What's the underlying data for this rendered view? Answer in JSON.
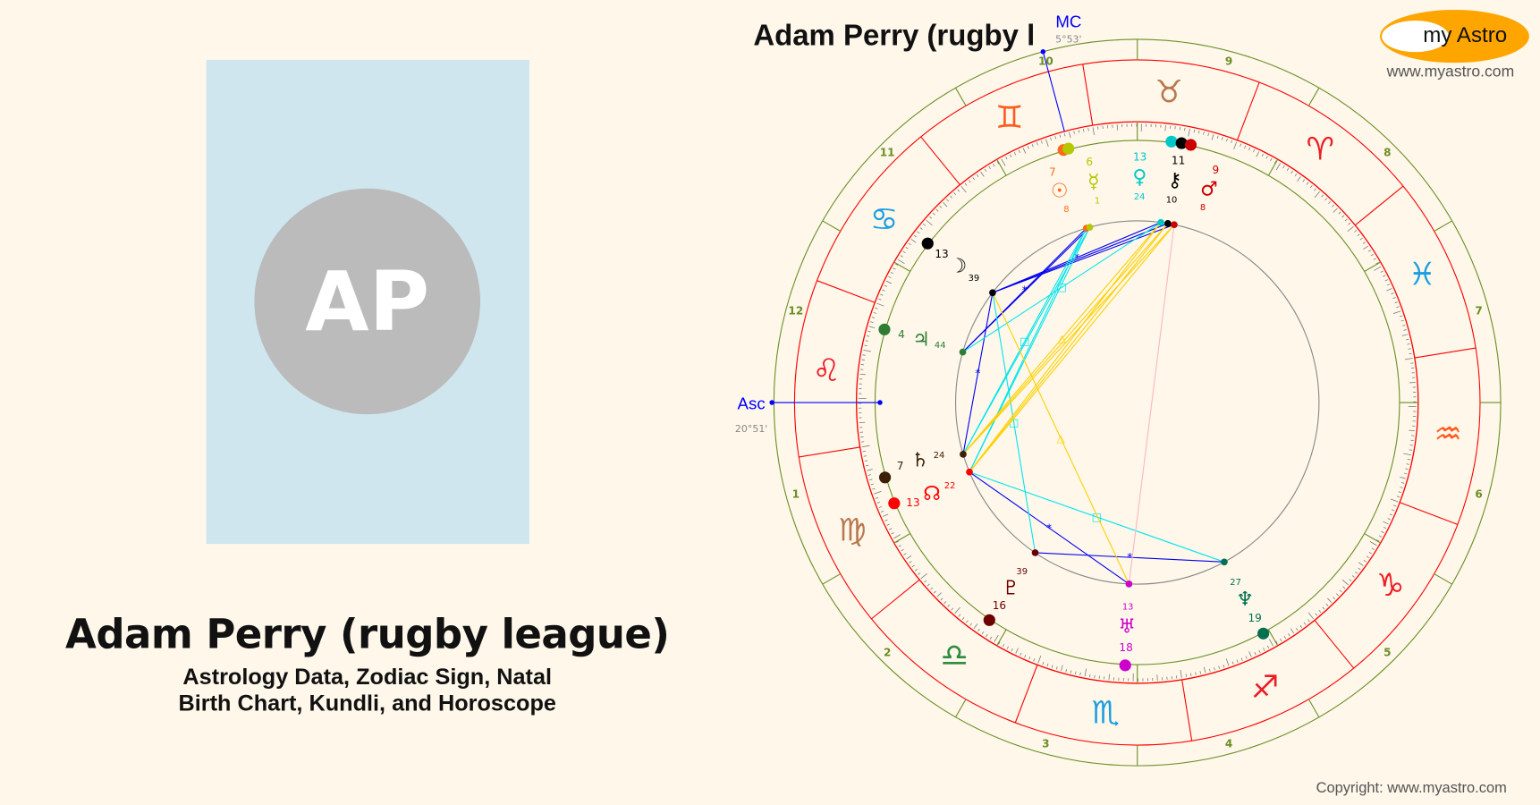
{
  "profile": {
    "initials": "AP",
    "name": "Adam Perry (rugby league)",
    "subtitle_line1": "Astrology Data, Zodiac Sign, Natal",
    "subtitle_line2": "Birth Chart, Kundli, and Horoscope",
    "photo_bg": "#cfe6ef"
  },
  "chart_header": {
    "title": "Adam Perry (rugby l",
    "logo_text": "my Astro",
    "logo_url": "www.myastro.com",
    "copyright": "Copyright: www.myastro.com"
  },
  "chart_data": {
    "type": "natal-wheel",
    "house_system": "equal",
    "ascendant": {
      "label": "Asc",
      "text": "20°51'",
      "sign": "Leo",
      "deg": 20,
      "min": 51
    },
    "midheaven": {
      "label": "MC",
      "text": "5°53'",
      "sign": "Gemini",
      "deg": 5,
      "min": 53
    },
    "houses": [
      "1",
      "2",
      "3",
      "4",
      "5",
      "6",
      "7",
      "8",
      "9",
      "10",
      "11",
      "12"
    ],
    "signs": [
      {
        "name": "Aries",
        "glyph": "♈",
        "color": "#ee1c24"
      },
      {
        "name": "Taurus",
        "glyph": "♉",
        "color": "#b8784f"
      },
      {
        "name": "Gemini",
        "glyph": "♊",
        "color": "#ff5a1f"
      },
      {
        "name": "Cancer",
        "glyph": "♋",
        "color": "#1a9ee0"
      },
      {
        "name": "Leo",
        "glyph": "♌",
        "color": "#ee1c24"
      },
      {
        "name": "Virgo",
        "glyph": "♍",
        "color": "#b8784f"
      },
      {
        "name": "Libra",
        "glyph": "♎",
        "color": "#2e8b3e"
      },
      {
        "name": "Scorpio",
        "glyph": "♏",
        "color": "#1a9ee0"
      },
      {
        "name": "Sagittarius",
        "glyph": "♐",
        "color": "#ee1c24"
      },
      {
        "name": "Capricorn",
        "glyph": "♑",
        "color": "#ee1c24"
      },
      {
        "name": "Aquarius",
        "glyph": "♒",
        "color": "#ff5a1f"
      },
      {
        "name": "Pisces",
        "glyph": "♓",
        "color": "#1a9ee0"
      }
    ],
    "planets": [
      {
        "id": "sun",
        "glyph": "☉",
        "sign": "Gemini",
        "deg": "7",
        "min": "8",
        "color": "#ff6a1a"
      },
      {
        "id": "mercury",
        "glyph": "☿",
        "sign": "Gemini",
        "deg": "6",
        "min": "1",
        "color": "#b5c800"
      },
      {
        "id": "venus",
        "glyph": "♀",
        "sign": "Taurus",
        "deg": "13",
        "min": "24",
        "color": "#00c8c8"
      },
      {
        "id": "chiron",
        "glyph": "⚷",
        "sign": "Taurus",
        "deg": "11",
        "min": "10",
        "color": "#000000"
      },
      {
        "id": "mars",
        "glyph": "♂",
        "sign": "Taurus",
        "deg": "9",
        "min": "8",
        "color": "#cc0000"
      },
      {
        "id": "moon",
        "glyph": "☽",
        "sign": "Cancer",
        "deg": "13",
        "min": "39",
        "color": "#000000"
      },
      {
        "id": "jupiter",
        "glyph": "♃",
        "sign": "Leo",
        "deg": "4",
        "min": "44",
        "color": "#2e7d32"
      },
      {
        "id": "saturn",
        "glyph": "♄",
        "sign": "Virgo",
        "deg": "7",
        "min": "24",
        "color": "#3b2006"
      },
      {
        "id": "node",
        "glyph": "☊",
        "sign": "Virgo",
        "deg": "13",
        "min": "22",
        "color": "#ff0000"
      },
      {
        "id": "pluto",
        "glyph": "♇",
        "sign": "Libra",
        "deg": "16",
        "min": "39",
        "color": "#6b0000"
      },
      {
        "id": "uranus",
        "glyph": "♅",
        "sign": "Scorpio",
        "deg": "18",
        "min": "13",
        "color": "#cc00cc"
      },
      {
        "id": "neptune",
        "glyph": "♆",
        "sign": "Sagittarius",
        "deg": "19",
        "min": "27",
        "color": "#007050"
      }
    ],
    "aspects": [
      {
        "a": "moon",
        "b": "venus",
        "type": "sextile"
      },
      {
        "a": "moon",
        "b": "chiron",
        "type": "sextile"
      },
      {
        "a": "moon",
        "b": "mars",
        "type": "sextile"
      },
      {
        "a": "jupiter",
        "b": "sun",
        "type": "sextile"
      },
      {
        "a": "jupiter",
        "b": "mercury",
        "type": "sextile"
      },
      {
        "a": "moon",
        "b": "saturn",
        "type": "sextile"
      },
      {
        "a": "node",
        "b": "uranus",
        "type": "sextile"
      },
      {
        "a": "pluto",
        "b": "neptune",
        "type": "sextile"
      },
      {
        "a": "moon",
        "b": "pluto",
        "type": "square"
      },
      {
        "a": "jupiter",
        "b": "venus",
        "type": "square"
      },
      {
        "a": "saturn",
        "b": "sun",
        "type": "square"
      },
      {
        "a": "saturn",
        "b": "mercury",
        "type": "square"
      },
      {
        "a": "node",
        "b": "sun",
        "type": "square"
      },
      {
        "a": "node",
        "b": "mercury",
        "type": "square"
      },
      {
        "a": "node",
        "b": "neptune",
        "type": "square"
      },
      {
        "a": "saturn",
        "b": "venus",
        "type": "trine"
      },
      {
        "a": "saturn",
        "b": "chiron",
        "type": "trine"
      },
      {
        "a": "saturn",
        "b": "mars",
        "type": "trine"
      },
      {
        "a": "node",
        "b": "venus",
        "type": "trine"
      },
      {
        "a": "node",
        "b": "chiron",
        "type": "trine"
      },
      {
        "a": "node",
        "b": "mars",
        "type": "trine"
      },
      {
        "a": "moon",
        "b": "uranus",
        "type": "trine"
      },
      {
        "a": "uranus",
        "b": "mars",
        "type": "minor"
      }
    ],
    "aspect_colors": {
      "sextile": "#0000ee",
      "square": "#00e5ee",
      "trine": "#ffd000",
      "minor": "#ffb6c1"
    },
    "aspect_symbols": {
      "sextile": "*",
      "square": "□",
      "trine": "△",
      "minor": ""
    },
    "ring_colors": {
      "house_ring": "#6b8e23",
      "sign_ring": "#ff0000",
      "inner_circle": "#888888",
      "angles": "#0000ff"
    }
  }
}
